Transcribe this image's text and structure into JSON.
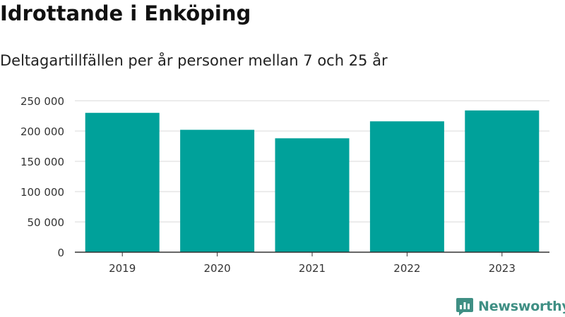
{
  "title": "Idrottande i Enköping",
  "subtitle": "Deltagartillfällen per år personer mellan 7 och 25 år",
  "brand": {
    "name": "Newsworthy",
    "icon": "newsworthy-logo-icon",
    "color": "#3f8f84"
  },
  "colors": {
    "bar": "#00a19a",
    "grid": "#d9d9d9",
    "axis": "#333333",
    "text": "#333333"
  },
  "chart_data": {
    "type": "bar",
    "categories": [
      "2019",
      "2020",
      "2021",
      "2022",
      "2023"
    ],
    "values": [
      230000,
      202000,
      188000,
      216000,
      234000
    ],
    "yticks": [
      0,
      50000,
      100000,
      150000,
      200000,
      250000
    ],
    "ytick_labels": [
      "0",
      "50 000",
      "100 000",
      "150 000",
      "200 000",
      "250 000"
    ],
    "ylim": [
      0,
      250000
    ],
    "grid": true,
    "xlabel": "",
    "ylabel": ""
  }
}
